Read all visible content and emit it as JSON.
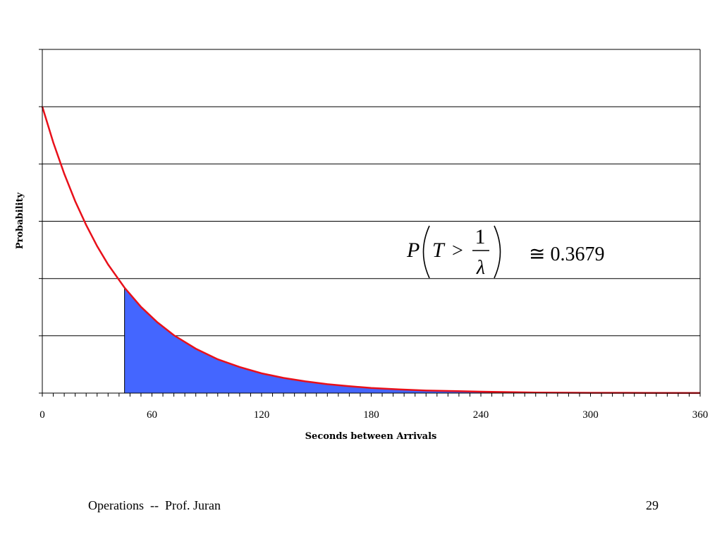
{
  "chart_data": {
    "type": "area",
    "title": "",
    "xlabel": "Seconds between Arrivals",
    "ylabel": "Probability",
    "xlim": [
      0,
      360
    ],
    "ylim": [
      0,
      1.2
    ],
    "xticks": [
      0,
      60,
      120,
      180,
      240,
      300,
      360
    ],
    "x_minor_tick_step": 6,
    "grid": {
      "horizontal": true,
      "vertical": false,
      "y_step": 0.2
    },
    "ytick_labels_shown": false,
    "legend": "none",
    "curve": {
      "color": "#e8101a",
      "x": [
        0,
        6,
        12,
        18,
        24,
        30,
        36,
        45,
        54,
        63,
        72,
        84,
        96,
        108,
        120,
        132,
        144,
        156,
        168,
        180,
        195,
        210,
        225,
        240,
        270,
        300,
        330,
        360
      ],
      "y": [
        1.0,
        0.875,
        0.766,
        0.67,
        0.587,
        0.513,
        0.449,
        0.368,
        0.301,
        0.247,
        0.202,
        0.155,
        0.118,
        0.091,
        0.069,
        0.053,
        0.041,
        0.031,
        0.024,
        0.018,
        0.013,
        0.009,
        0.007,
        0.005,
        0.002,
        0.001,
        0.0007,
        0.0003
      ]
    },
    "shaded_region": {
      "x_start": 45,
      "x_end": 360,
      "color": "#4466ff"
    },
    "annotation": {
      "P": "P",
      "T": "T",
      "gt": ">",
      "numerator": "1",
      "denominator": "λ",
      "value": "≅ 0.3679"
    }
  },
  "footer": {
    "left": "Operations  --  Prof. Juran",
    "page_number": "29"
  }
}
